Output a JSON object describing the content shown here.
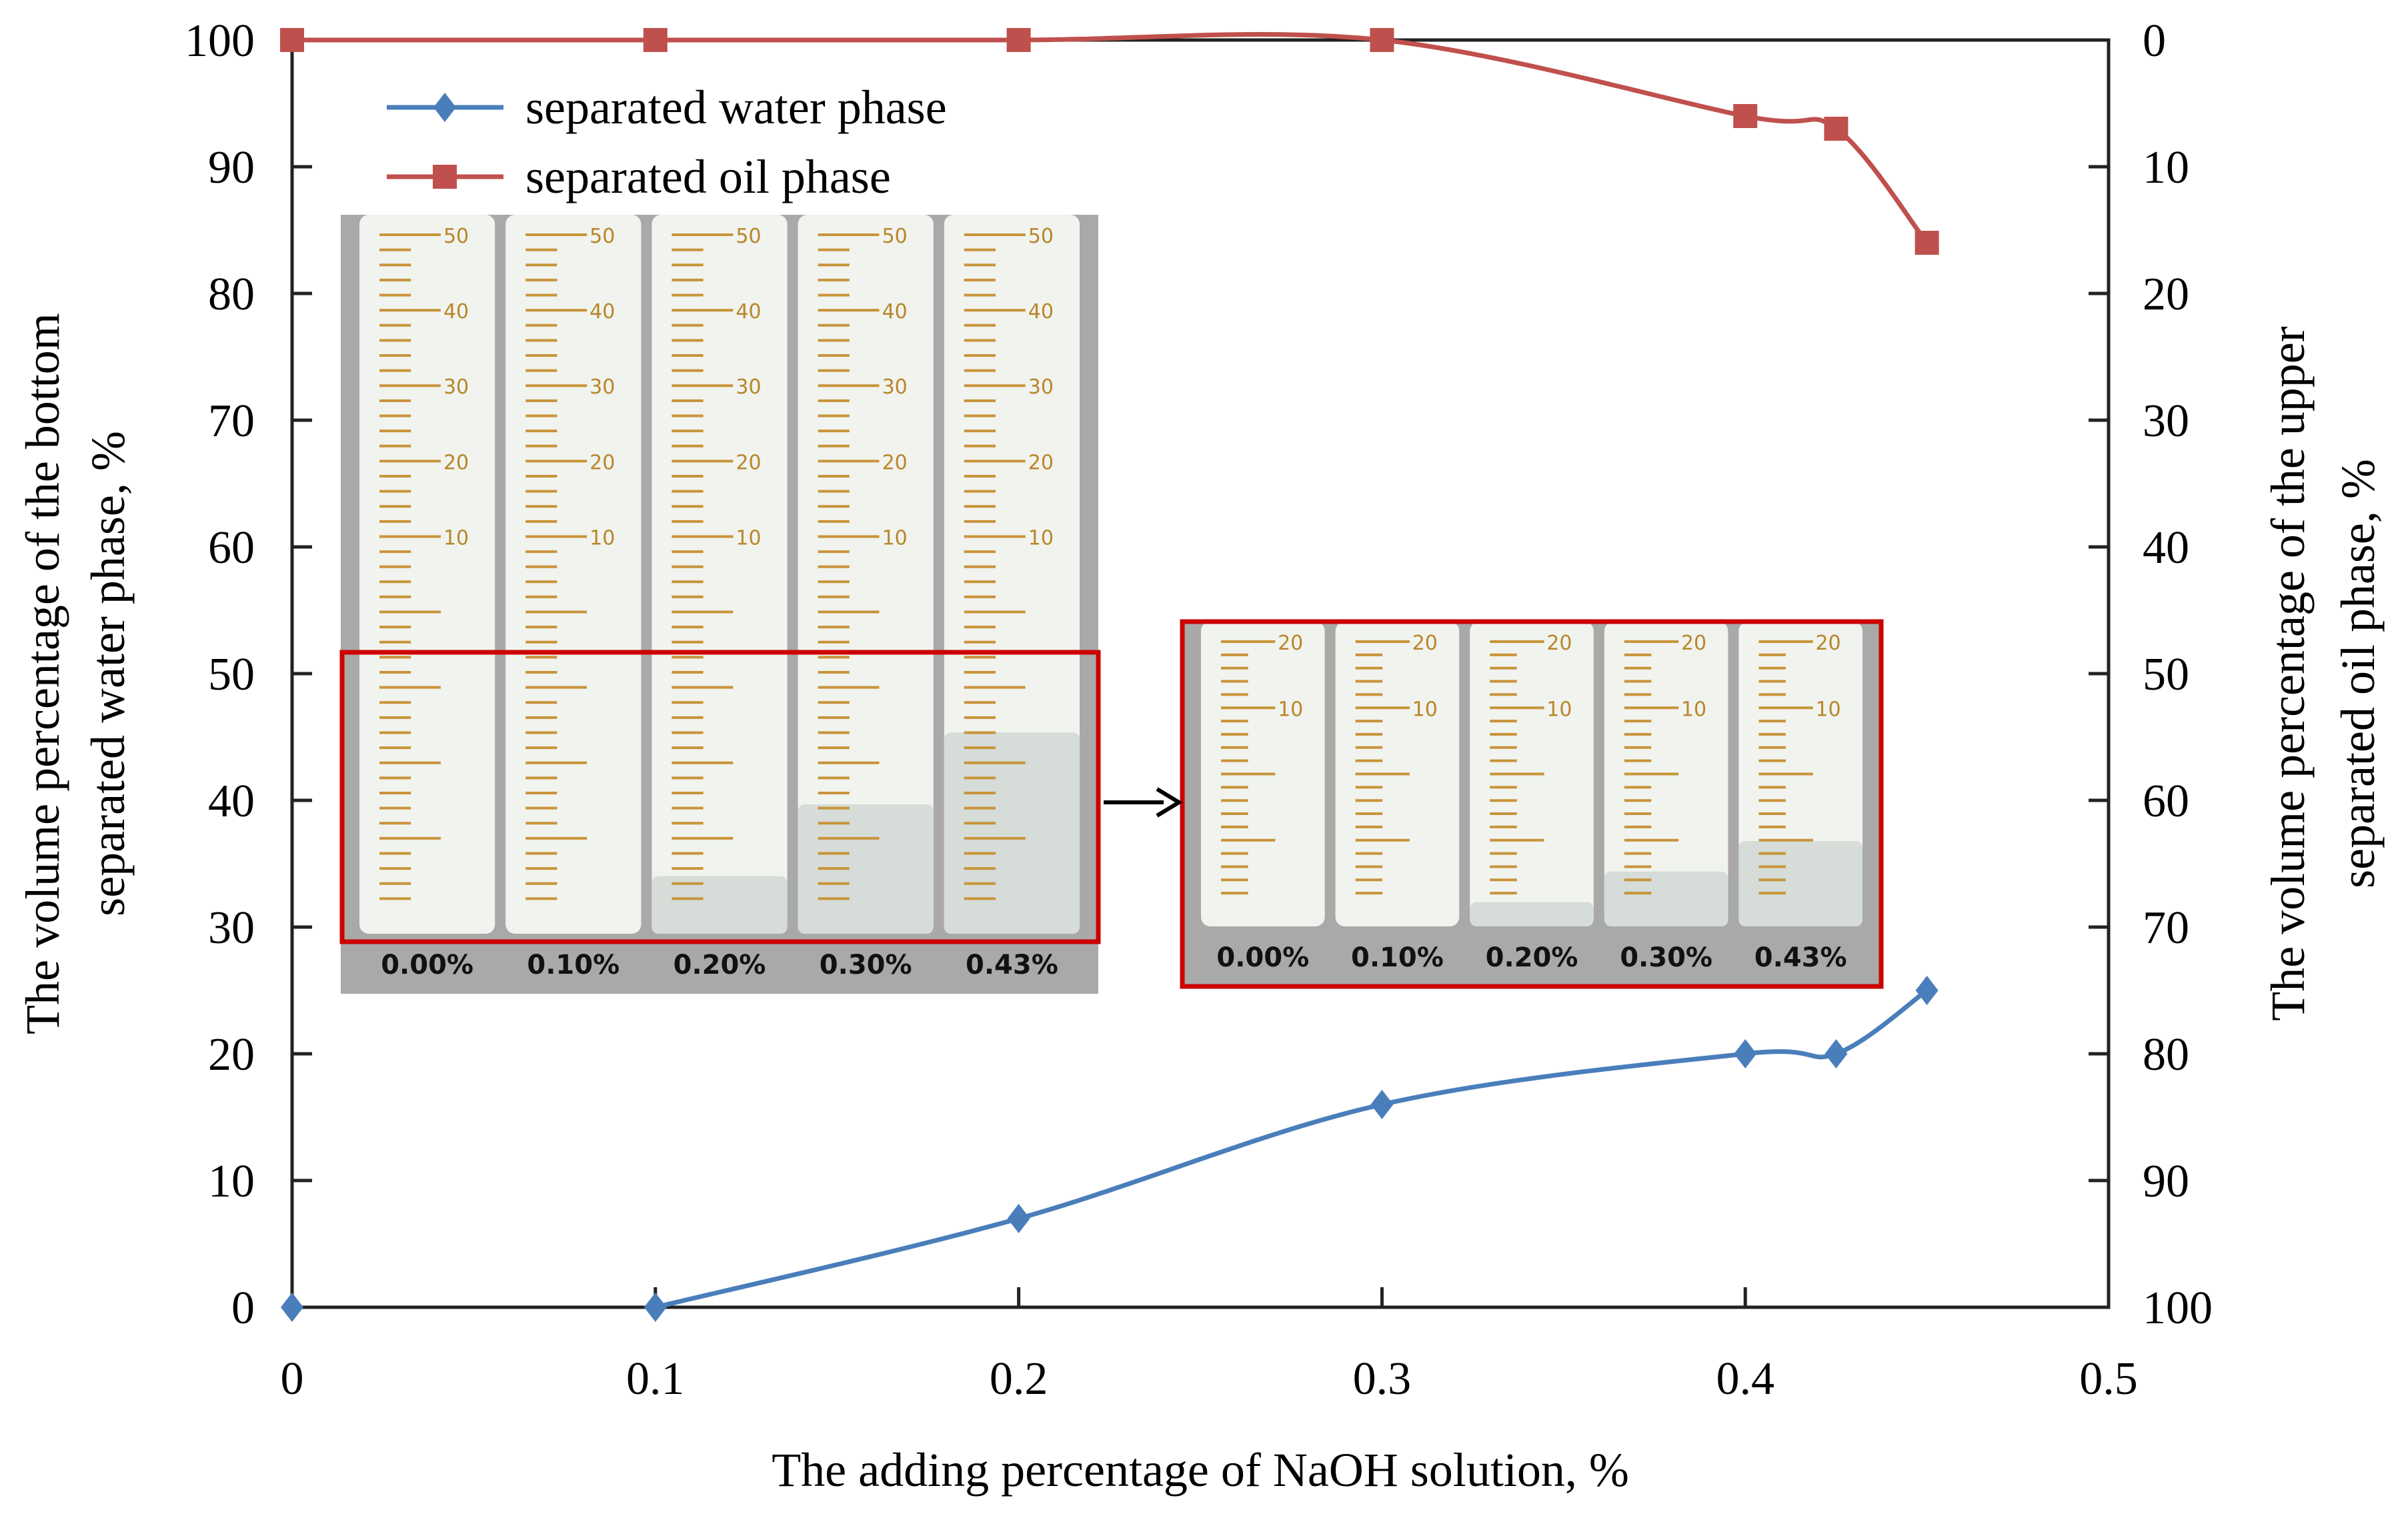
{
  "chart_data": {
    "type": "line",
    "xlabel": "The adding percentage of NaOH solution, %",
    "ylabel_left": [
      "The volume percentage of the bottom",
      "separated water phase, %"
    ],
    "ylabel_right": [
      "The volume percentage of the upper",
      "separated oil phase, %"
    ],
    "xlim": [
      0,
      0.5
    ],
    "ylim_left": [
      0,
      100
    ],
    "ylim_right": [
      100,
      0
    ],
    "right_axis_inverted": true,
    "x_ticks": [
      "0",
      "0.1",
      "0.2",
      "0.3",
      "0.4",
      "0.5"
    ],
    "y_ticks_left": [
      "0",
      "10",
      "20",
      "30",
      "40",
      "50",
      "60",
      "70",
      "80",
      "90",
      "100"
    ],
    "y_ticks_right": [
      "100",
      "90",
      "80",
      "70",
      "60",
      "50",
      "40",
      "30",
      "20",
      "10",
      "0"
    ],
    "grid": false,
    "legend_placement": "top-left",
    "series": [
      {
        "name": "separated water phase",
        "axis": "left",
        "color": "#4a7ebb",
        "marker": "diamond",
        "smooth": true,
        "x": [
          0,
          0.1,
          0.2,
          0.3,
          0.4,
          0.425,
          0.45
        ],
        "y": [
          0,
          0,
          7,
          16,
          20,
          20,
          25
        ]
      },
      {
        "name": "separated oil phase",
        "axis": "right",
        "color": "#c0504d",
        "marker": "square",
        "smooth": true,
        "x": [
          0,
          0.1,
          0.2,
          0.3,
          0.4,
          0.425,
          0.45
        ],
        "y": [
          0,
          0,
          0,
          0,
          6,
          7,
          16
        ]
      }
    ],
    "inset_photo": {
      "sample_labels": [
        "0.00%",
        "0.10%",
        "0.20%",
        "0.30%",
        "0.43%"
      ],
      "graduations": [
        "50",
        "40",
        "30",
        "20",
        "10"
      ],
      "zoom_graduations": [
        "20",
        "10"
      ],
      "highlight_color": "#cc0000"
    }
  }
}
